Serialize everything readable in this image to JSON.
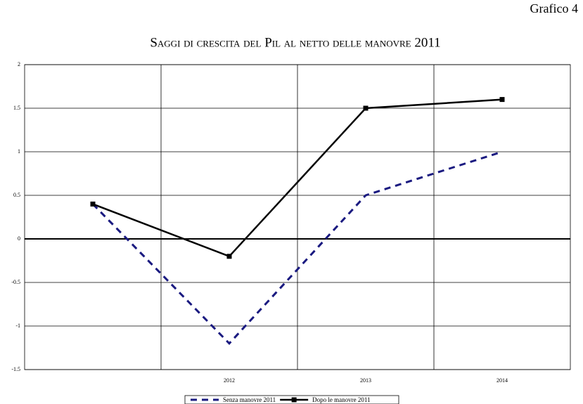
{
  "chart_data": {
    "type": "line",
    "label": "Grafico 4",
    "title": "Saggi di crescita del Pil al netto delle manovre 2011",
    "categories": [
      null,
      "2012",
      "2013",
      "2014"
    ],
    "series": [
      {
        "name": "Senza manovre 2011",
        "color": "#1a1a80",
        "line_style": "dashed",
        "marker": null,
        "values": [
          0.4,
          -1.2,
          0.5,
          1.0
        ]
      },
      {
        "name": "Dopo le manovre 2011",
        "color": "#000000",
        "line_style": "solid",
        "marker": "square",
        "values": [
          0.4,
          -0.2,
          1.5,
          1.6
        ]
      }
    ],
    "ylim": [
      -1.5,
      2
    ],
    "yticks": [
      -1.5,
      -1,
      -0.5,
      0,
      0.5,
      1,
      1.5,
      2
    ],
    "grid": true,
    "legend": "bottom"
  }
}
